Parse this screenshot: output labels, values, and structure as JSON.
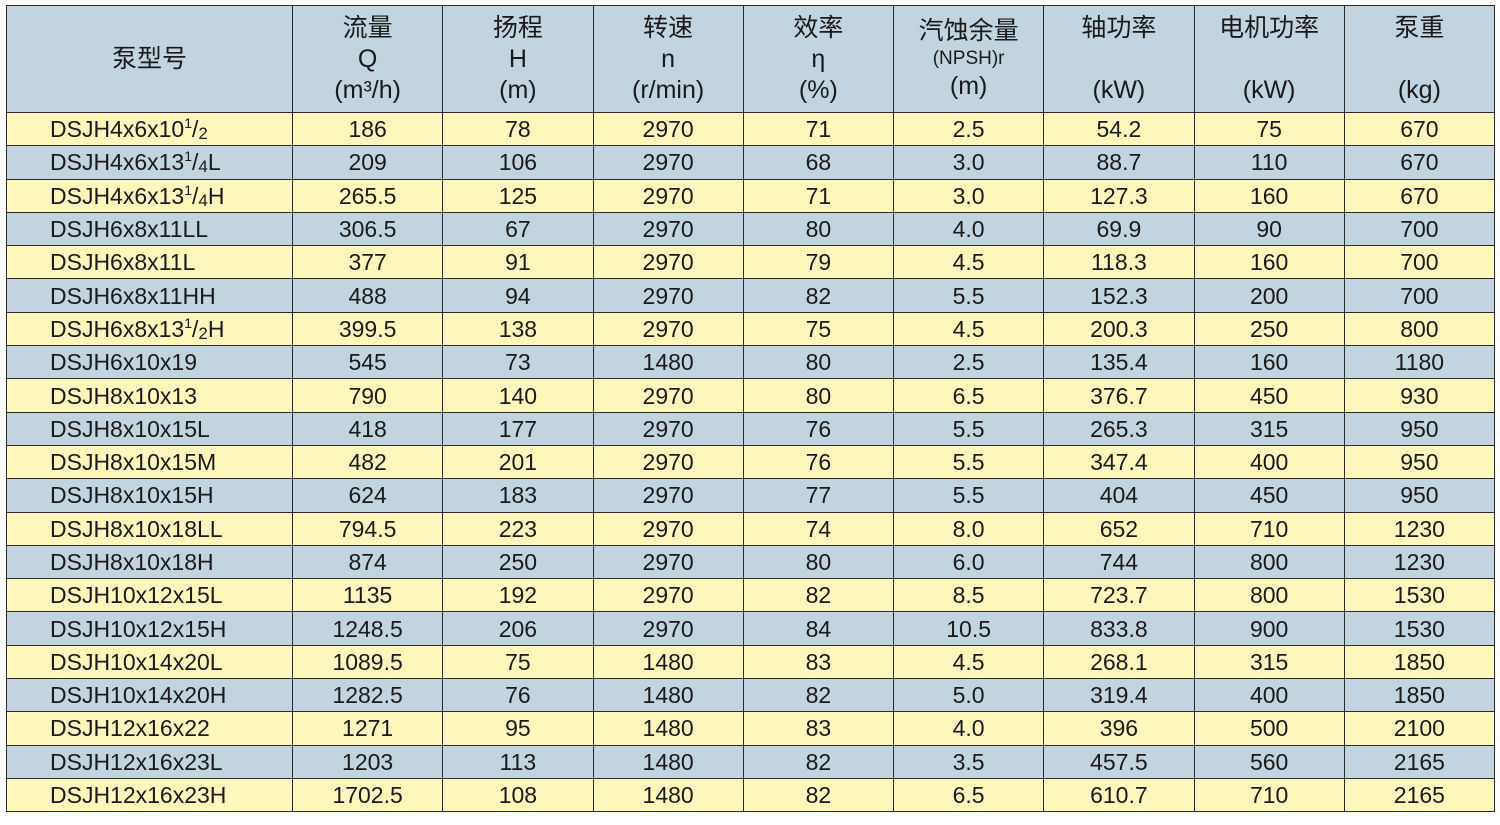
{
  "table": {
    "headers": [
      {
        "line1": "泵型号",
        "line2": "",
        "line3": ""
      },
      {
        "line1": "流量",
        "line2": "Q",
        "line3": "(m³/h)"
      },
      {
        "line1": "扬程",
        "line2": "H",
        "line3": "(m)"
      },
      {
        "line1": "转速",
        "line2": "n",
        "line3": "(r/min)"
      },
      {
        "line1": "效率",
        "line2": "η",
        "line3": "(%)"
      },
      {
        "line1": "汽蚀余量",
        "line2": "(NPSH)r",
        "line3": "(m)"
      },
      {
        "line1": "轴功率",
        "line2": "",
        "line3": "(kW)"
      },
      {
        "line1": "电机功率",
        "line2": "",
        "line3": "(kW)"
      },
      {
        "line1": "泵重",
        "line2": "",
        "line3": "(kg)"
      }
    ],
    "rows": [
      {
        "model": {
          "base": "DSJH4x6x10",
          "sup": "1",
          "sub": "2",
          "suffix": ""
        },
        "cells": [
          "186",
          "78",
          "2970",
          "71",
          "2.5",
          "54.2",
          "75",
          "670"
        ]
      },
      {
        "model": {
          "base": "DSJH4x6x13",
          "sup": "1",
          "sub": "4",
          "suffix": "L"
        },
        "cells": [
          "209",
          "106",
          "2970",
          "68",
          "3.0",
          "88.7",
          "110",
          "670"
        ]
      },
      {
        "model": {
          "base": "DSJH4x6x13",
          "sup": "1",
          "sub": "4",
          "suffix": "H"
        },
        "cells": [
          "265.5",
          "125",
          "2970",
          "71",
          "3.0",
          "127.3",
          "160",
          "670"
        ]
      },
      {
        "model": {
          "base": "DSJH6x8x11LL",
          "sup": "",
          "sub": "",
          "suffix": ""
        },
        "cells": [
          "306.5",
          "67",
          "2970",
          "80",
          "4.0",
          "69.9",
          "90",
          "700"
        ]
      },
      {
        "model": {
          "base": "DSJH6x8x11L",
          "sup": "",
          "sub": "",
          "suffix": ""
        },
        "cells": [
          "377",
          "91",
          "2970",
          "79",
          "4.5",
          "118.3",
          "160",
          "700"
        ]
      },
      {
        "model": {
          "base": "DSJH6x8x11HH",
          "sup": "",
          "sub": "",
          "suffix": ""
        },
        "cells": [
          "488",
          "94",
          "2970",
          "82",
          "5.5",
          "152.3",
          "200",
          "700"
        ]
      },
      {
        "model": {
          "base": "DSJH6x8x13",
          "sup": "1",
          "sub": "2",
          "suffix": "H"
        },
        "cells": [
          "399.5",
          "138",
          "2970",
          "75",
          "4.5",
          "200.3",
          "250",
          "800"
        ]
      },
      {
        "model": {
          "base": "DSJH6x10x19",
          "sup": "",
          "sub": "",
          "suffix": ""
        },
        "cells": [
          "545",
          "73",
          "1480",
          "80",
          "2.5",
          "135.4",
          "160",
          "1180"
        ]
      },
      {
        "model": {
          "base": "DSJH8x10x13",
          "sup": "",
          "sub": "",
          "suffix": ""
        },
        "cells": [
          "790",
          "140",
          "2970",
          "80",
          "6.5",
          "376.7",
          "450",
          "930"
        ]
      },
      {
        "model": {
          "base": "DSJH8x10x15L",
          "sup": "",
          "sub": "",
          "suffix": ""
        },
        "cells": [
          "418",
          "177",
          "2970",
          "76",
          "5.5",
          "265.3",
          "315",
          "950"
        ]
      },
      {
        "model": {
          "base": "DSJH8x10x15M",
          "sup": "",
          "sub": "",
          "suffix": ""
        },
        "cells": [
          "482",
          "201",
          "2970",
          "76",
          "5.5",
          "347.4",
          "400",
          "950"
        ]
      },
      {
        "model": {
          "base": "DSJH8x10x15H",
          "sup": "",
          "sub": "",
          "suffix": ""
        },
        "cells": [
          "624",
          "183",
          "2970",
          "77",
          "5.5",
          "404",
          "450",
          "950"
        ]
      },
      {
        "model": {
          "base": "DSJH8x10x18LL",
          "sup": "",
          "sub": "",
          "suffix": ""
        },
        "cells": [
          "794.5",
          "223",
          "2970",
          "74",
          "8.0",
          "652",
          "710",
          "1230"
        ]
      },
      {
        "model": {
          "base": "DSJH8x10x18H",
          "sup": "",
          "sub": "",
          "suffix": ""
        },
        "cells": [
          "874",
          "250",
          "2970",
          "80",
          "6.0",
          "744",
          "800",
          "1230"
        ]
      },
      {
        "model": {
          "base": "DSJH10x12x15L",
          "sup": "",
          "sub": "",
          "suffix": ""
        },
        "cells": [
          "1135",
          "192",
          "2970",
          "82",
          "8.5",
          "723.7",
          "800",
          "1530"
        ]
      },
      {
        "model": {
          "base": "DSJH10x12x15H",
          "sup": "",
          "sub": "",
          "suffix": ""
        },
        "cells": [
          "1248.5",
          "206",
          "2970",
          "84",
          "10.5",
          "833.8",
          "900",
          "1530"
        ]
      },
      {
        "model": {
          "base": "DSJH10x14x20L",
          "sup": "",
          "sub": "",
          "suffix": ""
        },
        "cells": [
          "1089.5",
          "75",
          "1480",
          "83",
          "4.5",
          "268.1",
          "315",
          "1850"
        ]
      },
      {
        "model": {
          "base": "DSJH10x14x20H",
          "sup": "",
          "sub": "",
          "suffix": ""
        },
        "cells": [
          "1282.5",
          "76",
          "1480",
          "82",
          "5.0",
          "319.4",
          "400",
          "1850"
        ]
      },
      {
        "model": {
          "base": "DSJH12x16x22",
          "sup": "",
          "sub": "",
          "suffix": ""
        },
        "cells": [
          "1271",
          "95",
          "1480",
          "83",
          "4.0",
          "396",
          "500",
          "2100"
        ]
      },
      {
        "model": {
          "base": "DSJH12x16x23L",
          "sup": "",
          "sub": "",
          "suffix": ""
        },
        "cells": [
          "1203",
          "113",
          "1480",
          "82",
          "3.5",
          "457.5",
          "560",
          "2165"
        ]
      },
      {
        "model": {
          "base": "DSJH12x16x23H",
          "sup": "",
          "sub": "",
          "suffix": ""
        },
        "cells": [
          "1702.5",
          "108",
          "1480",
          "82",
          "6.5",
          "610.7",
          "710",
          "2165"
        ]
      }
    ]
  },
  "colors": {
    "header_bg": "#c2d4e0",
    "row_yellow": "#fdf7bc",
    "row_blue": "#c2d4e0",
    "border": "#2b2b2b"
  }
}
